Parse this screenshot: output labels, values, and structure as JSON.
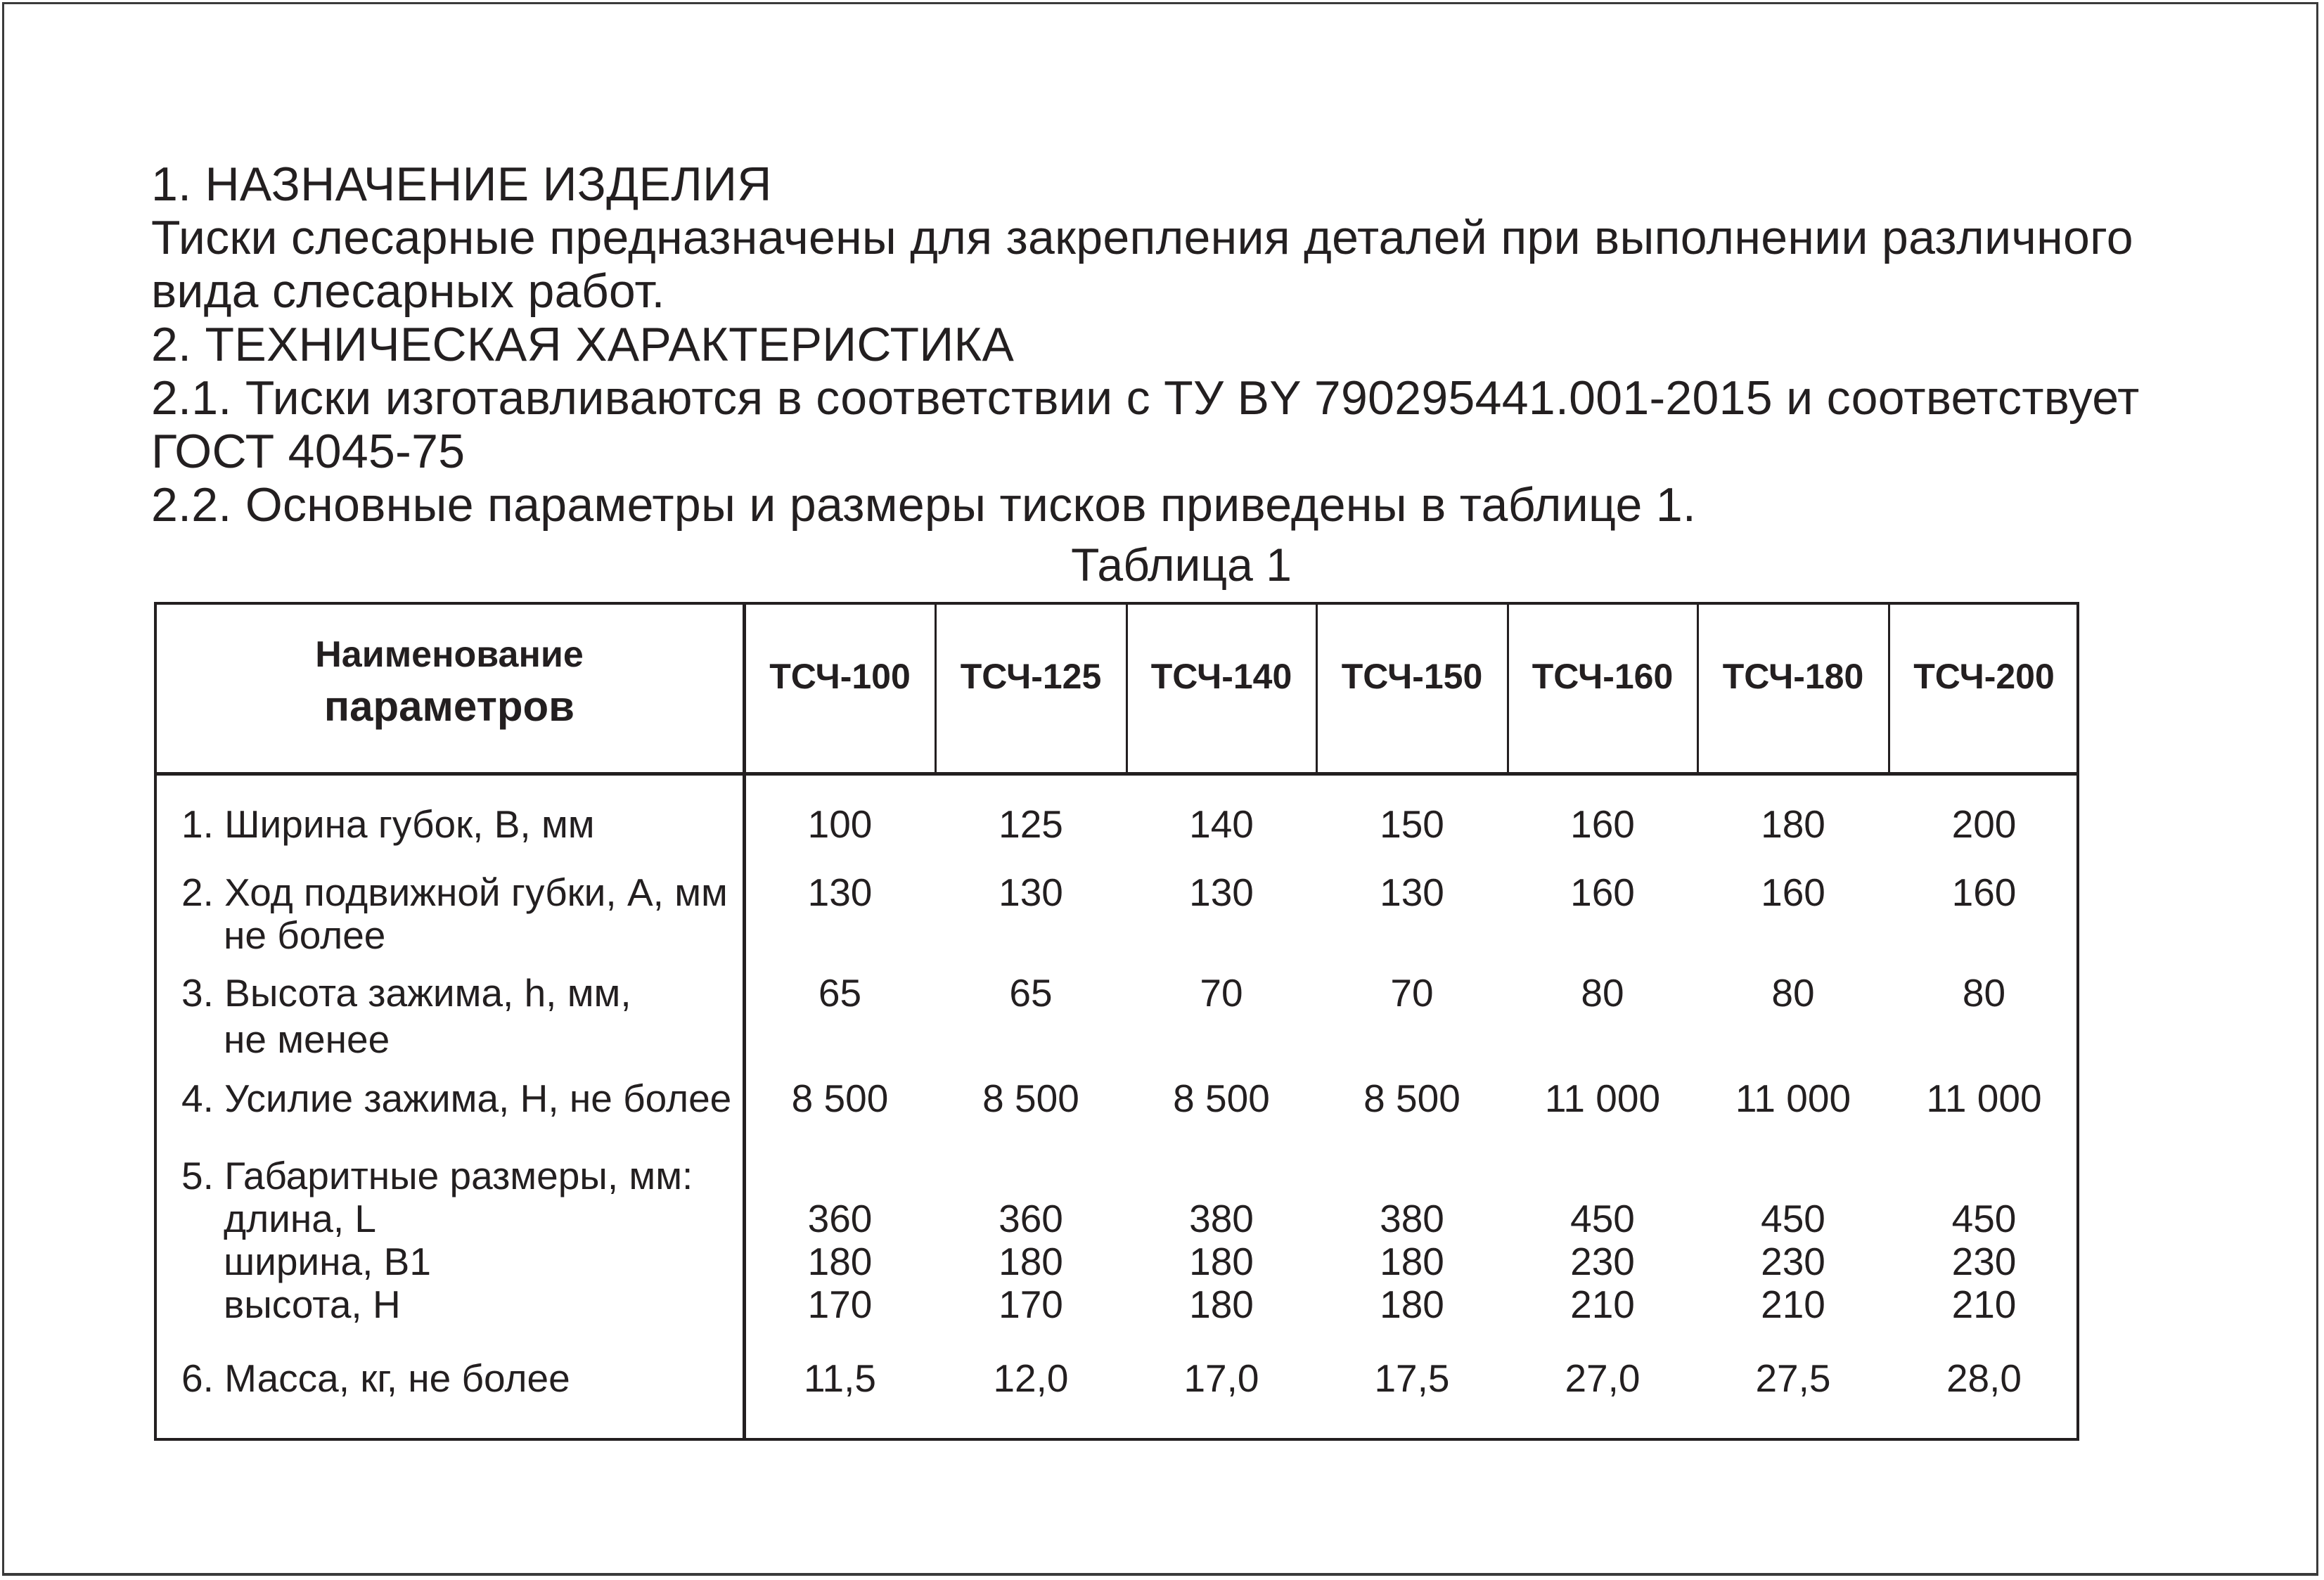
{
  "text": {
    "section1_title": "1. НАЗНАЧЕНИЕ ИЗДЕЛИЯ",
    "section1_body_line1": "Тиски слесарные предназначены для закрепления деталей при выполнении различного",
    "section1_body_line2": "вида слесарных работ.",
    "section2_title": "2. ТЕХНИЧЕСКАЯ ХАРАКТЕРИСТИКА",
    "p21_line1": "2.1. Тиски изготавливаются в соответствии с ТУ BY 790295441.001-2015 и соответствует",
    "p21_line2": "ГОСТ 4045-75",
    "p22": "2.2. Основные параметры и размеры тисков приведены в таблице 1.",
    "table_caption": "Таблица 1"
  },
  "table": {
    "header_name_line1": "Наименование",
    "header_name_line2": "параметров",
    "columns": [
      "ТСЧ-100",
      "ТСЧ-125",
      "ТСЧ-140",
      "ТСЧ-150",
      "ТСЧ-160",
      "ТСЧ-180",
      "ТСЧ-200"
    ],
    "rows": [
      {
        "label": [
          "1. Ширина губок, В, мм"
        ],
        "values": [
          [
            "100",
            "125",
            "140",
            "150",
            "160",
            "180",
            "200"
          ]
        ]
      },
      {
        "label": [
          "2. Ход подвижной губки, А, мм",
          "не более"
        ],
        "values": [
          [
            "130",
            "130",
            "130",
            "130",
            "160",
            "160",
            "160"
          ]
        ]
      },
      {
        "label": [
          "3. Высота зажима, h, мм,",
          "не менее"
        ],
        "values": [
          [
            "65",
            "65",
            "70",
            "70",
            "80",
            "80",
            "80"
          ]
        ]
      },
      {
        "label": [
          "4. Усилие зажима, Н, не более"
        ],
        "values": [
          [
            "8 500",
            "8 500",
            "8 500",
            "8 500",
            "11 000",
            "11 000",
            "11 000"
          ]
        ]
      },
      {
        "label": [
          "5. Габаритные размеры, мм:",
          "длина, L",
          "ширина, B1",
          "высота, H"
        ],
        "values": [
          [],
          [
            "360",
            "360",
            "380",
            "380",
            "450",
            "450",
            "450"
          ],
          [
            "180",
            "180",
            "180",
            "180",
            "230",
            "230",
            "230"
          ],
          [
            "170",
            "170",
            "180",
            "180",
            "210",
            "210",
            "210"
          ]
        ]
      },
      {
        "label": [
          "6. Масса, кг, не более"
        ],
        "values": [
          [
            "11,5",
            "12,0",
            "17,0",
            "17,5",
            "27,0",
            "27,5",
            "28,0"
          ]
        ]
      }
    ]
  }
}
